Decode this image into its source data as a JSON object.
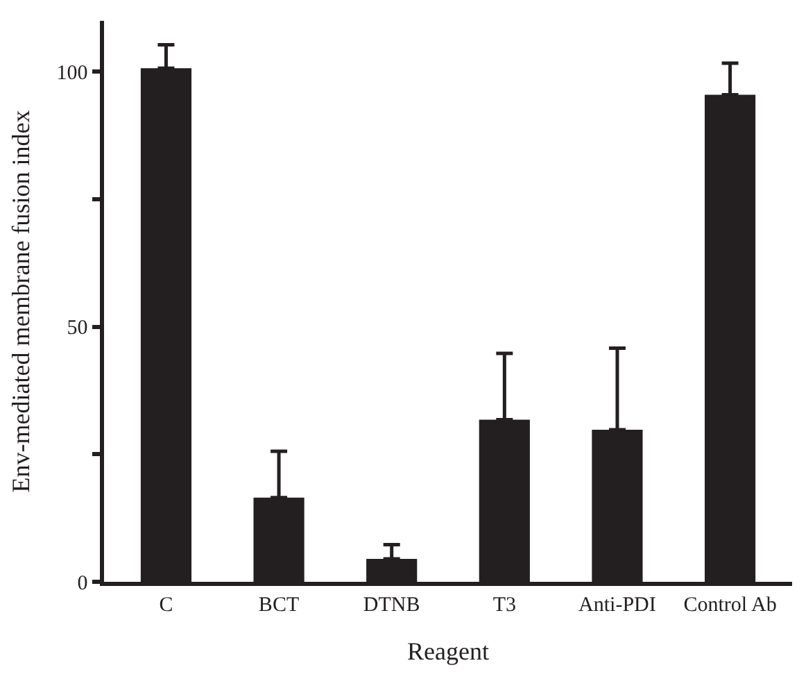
{
  "chart_data": {
    "type": "bar",
    "xlabel": "Reagent",
    "ylabel": "Env-mediated membrane fusion index",
    "categories": [
      "C",
      "BCT",
      "DTNB",
      "T3",
      "Anti-PDI",
      "Control Ab"
    ],
    "values": [
      100.7,
      16.5,
      4.5,
      31.8,
      29.8,
      95.5
    ],
    "errors": [
      [
        100.7,
        105.3
      ],
      [
        16.5,
        25.6
      ],
      [
        4.5,
        7.3
      ],
      [
        31.8,
        44.8
      ],
      [
        29.8,
        45.8
      ],
      [
        95.5,
        101.7
      ]
    ],
    "color": "#231f20",
    "ylim": [
      0,
      110
    ],
    "yticks": [
      0,
      {
        "value": 25,
        "label": null
      },
      50,
      {
        "value": 75,
        "label": null
      },
      100
    ]
  }
}
